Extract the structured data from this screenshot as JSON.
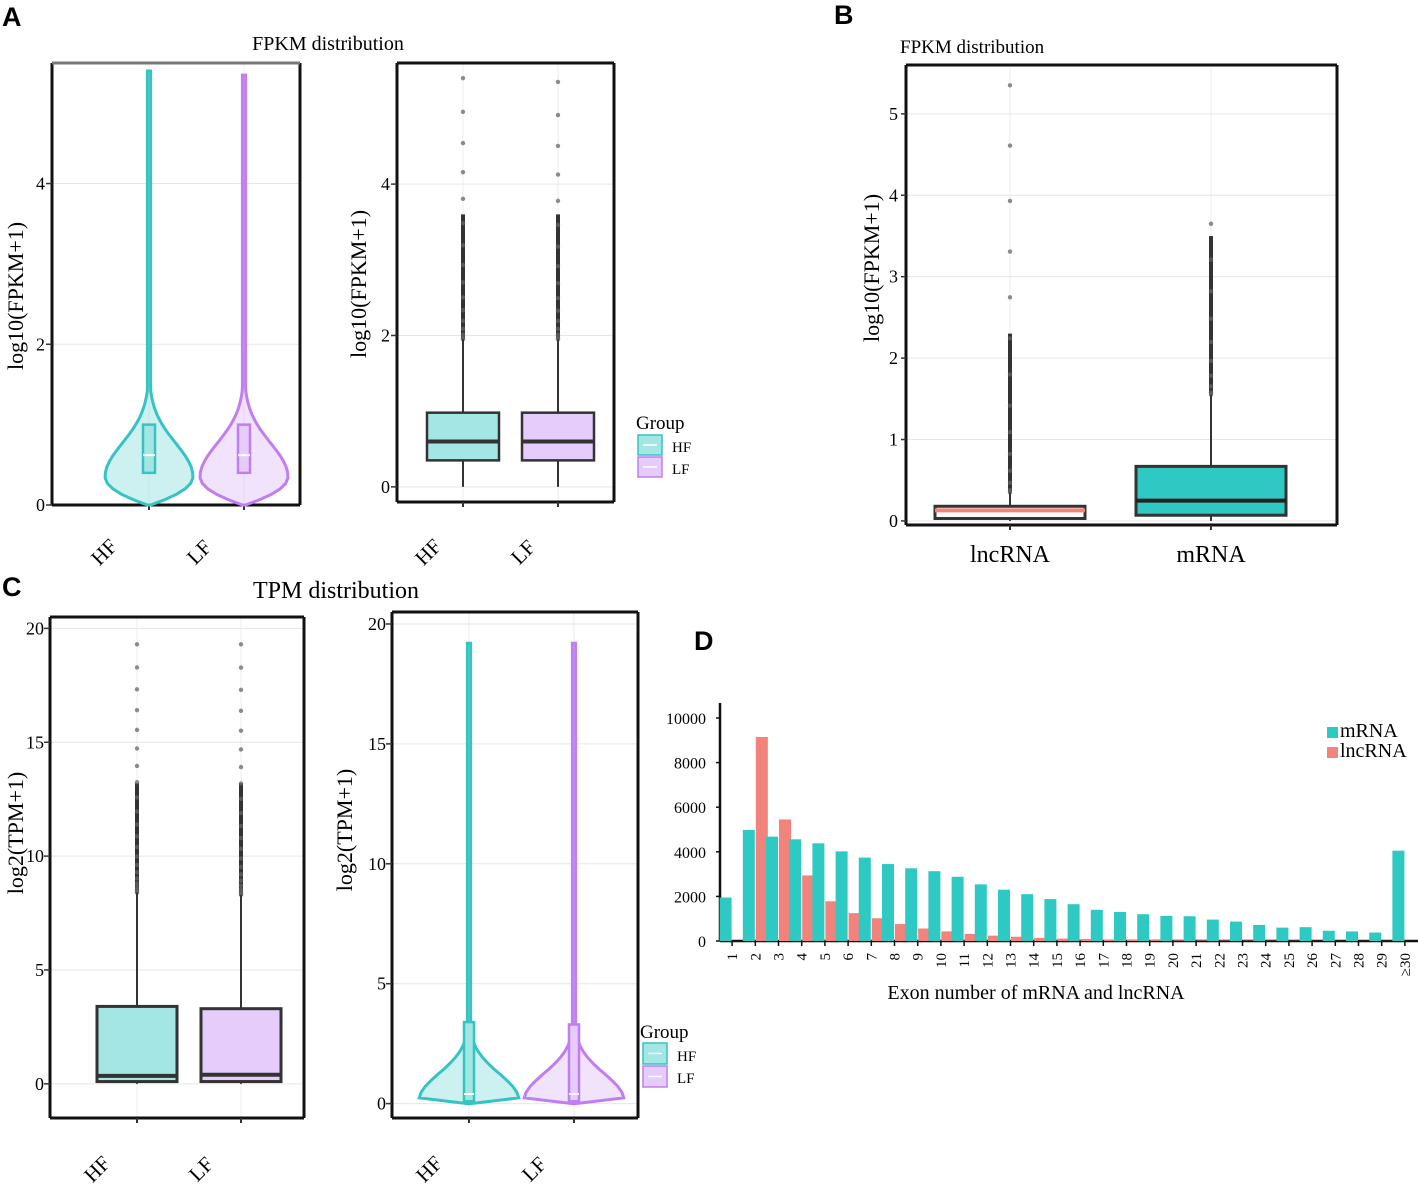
{
  "colors": {
    "hf": "#35c4c1",
    "hf_fill": "#a3e6e4",
    "lf": "#c07ef0",
    "lf_fill": "#e5ccfa",
    "mrna": "#2ec9c3",
    "lncrna": "#f1827c",
    "dark": "#333333"
  },
  "panels": {
    "a": "A",
    "b": "B",
    "c": "C",
    "d": "D"
  },
  "chart_data": [
    {
      "id": "A1",
      "type": "violin",
      "title": "FPKM distribution",
      "ylabel": "log10(FPKM+1)",
      "categories": [
        "HF",
        "LF"
      ],
      "yticks": [
        "0",
        "2",
        "4"
      ],
      "ylim": [
        0,
        5.5
      ],
      "stats": [
        {
          "name": "HF",
          "q1": 0.4,
          "median": 0.62,
          "q3": 1.0,
          "whisker_low": 0.0,
          "max": 5.4
        },
        {
          "name": "LF",
          "q1": 0.4,
          "median": 0.62,
          "q3": 1.0,
          "whisker_low": 0.0,
          "max": 5.35
        }
      ]
    },
    {
      "id": "A2",
      "type": "box",
      "ylabel": "log10(FPKM+1)",
      "categories": [
        "HF",
        "LF"
      ],
      "yticks": [
        "0",
        "2",
        "4"
      ],
      "ylim": [
        -0.2,
        5.6
      ],
      "stats": [
        {
          "name": "HF",
          "q1": 0.35,
          "median": 0.6,
          "q3": 0.98,
          "whisker_low": 0.0,
          "whisker_high": 1.95,
          "outlier_max": 5.4
        },
        {
          "name": "LF",
          "q1": 0.35,
          "median": 0.6,
          "q3": 0.98,
          "whisker_low": 0.0,
          "whisker_high": 1.95,
          "outlier_max": 5.35
        }
      ],
      "legend": {
        "title": "Group",
        "entries": [
          "HF",
          "LF"
        ]
      }
    },
    {
      "id": "B",
      "type": "box",
      "title": "FPKM distribution",
      "ylabel": "log10(FPKM+1)",
      "categories": [
        "lncRNA",
        "mRNA"
      ],
      "yticks": [
        "0",
        "1",
        "2",
        "3",
        "4",
        "5"
      ],
      "ylim": [
        -0.05,
        5.6
      ],
      "stats": [
        {
          "name": "lncRNA",
          "q1": 0.03,
          "median": 0.13,
          "q3": 0.18,
          "whisker_low": 0.0,
          "whisker_high": 0.35,
          "outlier_max": 5.35
        },
        {
          "name": "mRNA",
          "q1": 0.07,
          "median": 0.25,
          "q3": 0.67,
          "whisker_low": 0.0,
          "whisker_high": 1.55,
          "outlier_max": 3.65
        }
      ]
    },
    {
      "id": "C1",
      "type": "box",
      "title": "TPM distribution",
      "ylabel": "log2(TPM+1)",
      "categories": [
        "HF",
        "LF"
      ],
      "yticks": [
        "0",
        "5",
        "10",
        "15",
        "20"
      ],
      "ylim": [
        -1.5,
        20.5
      ],
      "stats": [
        {
          "name": "HF",
          "q1": 0.1,
          "median": 0.35,
          "q3": 3.4,
          "whisker_low": 0.0,
          "whisker_high": 8.4,
          "outlier_max": 19.3
        },
        {
          "name": "LF",
          "q1": 0.1,
          "median": 0.4,
          "q3": 3.3,
          "whisker_low": 0.0,
          "whisker_high": 8.3,
          "outlier_max": 19.3
        }
      ]
    },
    {
      "id": "C2",
      "type": "violin",
      "ylabel": "log2(TPM+1)",
      "categories": [
        "HF",
        "LF"
      ],
      "yticks": [
        "0",
        "5",
        "10",
        "15",
        "20"
      ],
      "ylim": [
        -0.6,
        20.5
      ],
      "stats": [
        {
          "name": "HF",
          "q1": 0.1,
          "median": 0.4,
          "q3": 3.4,
          "whisker_low": 0.0,
          "max": 19.2
        },
        {
          "name": "LF",
          "q1": 0.1,
          "median": 0.4,
          "q3": 3.3,
          "whisker_low": 0.0,
          "max": 19.2
        }
      ],
      "legend": {
        "title": "Group",
        "entries": [
          "HF",
          "LF"
        ]
      }
    },
    {
      "id": "D",
      "type": "bar",
      "xlabel": "Exon number of mRNA and lncRNA",
      "ylabel": "",
      "ylim": [
        0,
        10000
      ],
      "yticks": [
        "0",
        "2000",
        "4000",
        "6000",
        "8000",
        "10000"
      ],
      "categories": [
        "1",
        "2",
        "3",
        "4",
        "5",
        "6",
        "7",
        "8",
        "9",
        "10",
        "11",
        "12",
        "13",
        "14",
        "15",
        "16",
        "17",
        "18",
        "19",
        "20",
        "21",
        "22",
        "23",
        "24",
        "25",
        "26",
        "27",
        "28",
        "29",
        "≥30"
      ],
      "series": [
        {
          "name": "mRNA",
          "values": [
            1950,
            4980,
            4680,
            4560,
            4380,
            4020,
            3740,
            3450,
            3260,
            3130,
            2880,
            2540,
            2300,
            2100,
            1880,
            1650,
            1400,
            1300,
            1200,
            1120,
            1110,
            960,
            870,
            720,
            600,
            620,
            460,
            430,
            380,
            4050
          ]
        },
        {
          "name": "lncRNA",
          "values": [
            0,
            9150,
            5450,
            2940,
            1780,
            1250,
            1020,
            760,
            560,
            430,
            320,
            240,
            190,
            140,
            110,
            90,
            70,
            50,
            40,
            30,
            25,
            20,
            15,
            10,
            10,
            5,
            5,
            5,
            5,
            0
          ]
        }
      ]
    }
  ]
}
